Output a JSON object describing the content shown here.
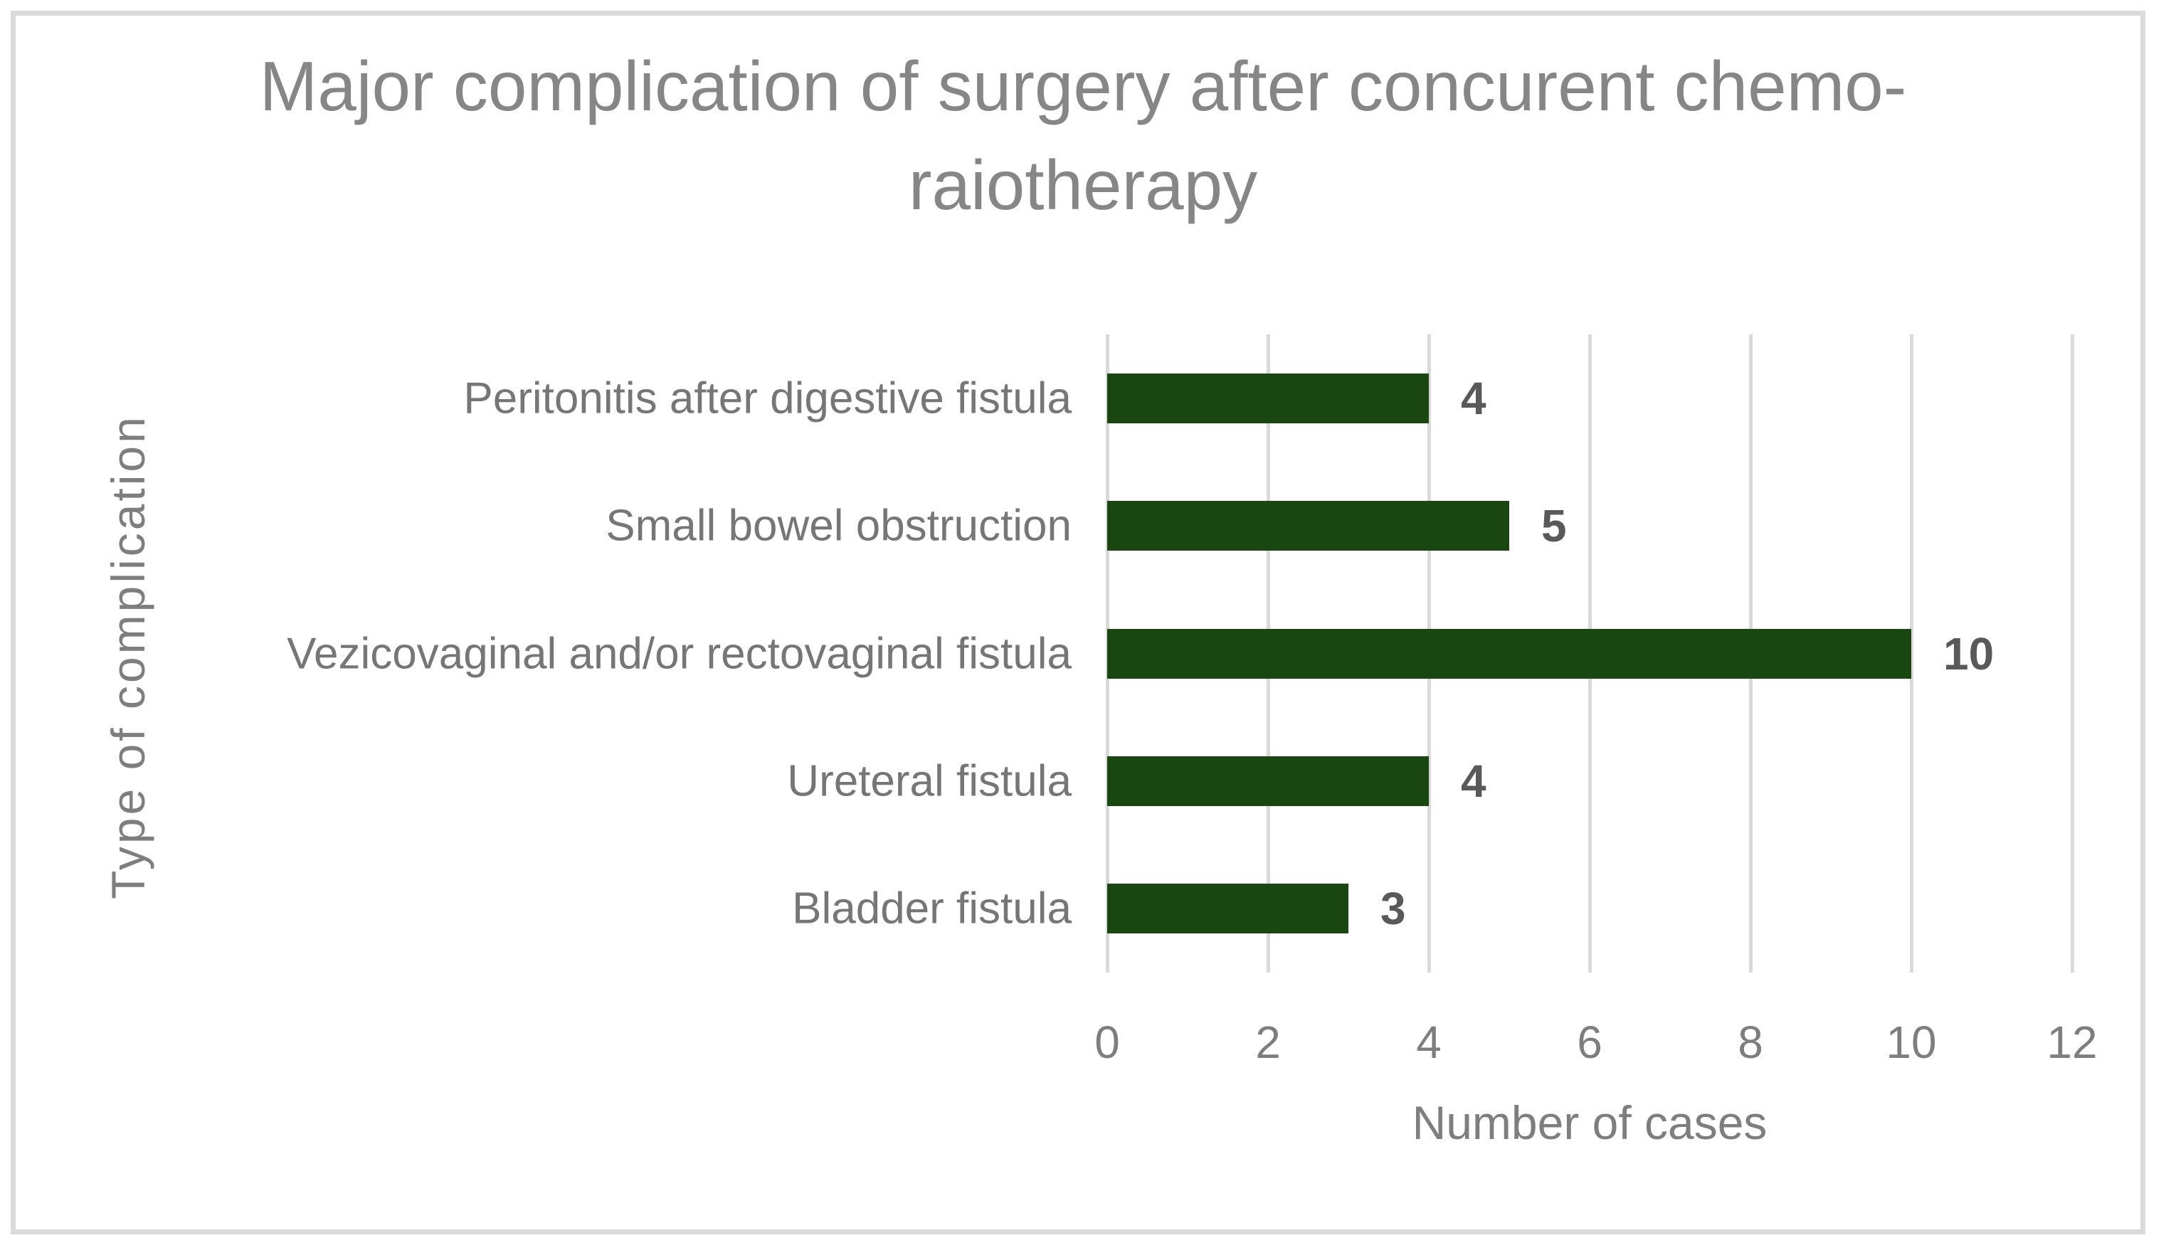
{
  "chart_data": {
    "type": "bar",
    "orientation": "horizontal",
    "title": "Major complication of surgery after concurent chemo-raiotherapy",
    "xlabel": "Number of cases",
    "ylabel": "Type of complication",
    "categories": [
      "Peritonitis after digestive fistula",
      "Small bowel obstruction",
      "Vezicovaginal and/or rectovaginal fistula",
      "Ureteral fistula",
      "Bladder fistula"
    ],
    "values": [
      4,
      5,
      10,
      4,
      3
    ],
    "data_labels": [
      "4",
      "5",
      "10",
      "4",
      "3"
    ],
    "xlim": [
      0,
      12
    ],
    "xticks": [
      0,
      2,
      4,
      6,
      8,
      10,
      12
    ],
    "grid": "vertical-gridlines-on",
    "legend": "none",
    "colors": {
      "bar": "#1a4711",
      "gridline": "#d9d9d9",
      "frame_border": "#dadada",
      "title_text": "#868686",
      "axis_text": "#7e7e7e",
      "category_text": "#767676",
      "data_label_text": "#595959",
      "background": "#ffffff"
    }
  }
}
